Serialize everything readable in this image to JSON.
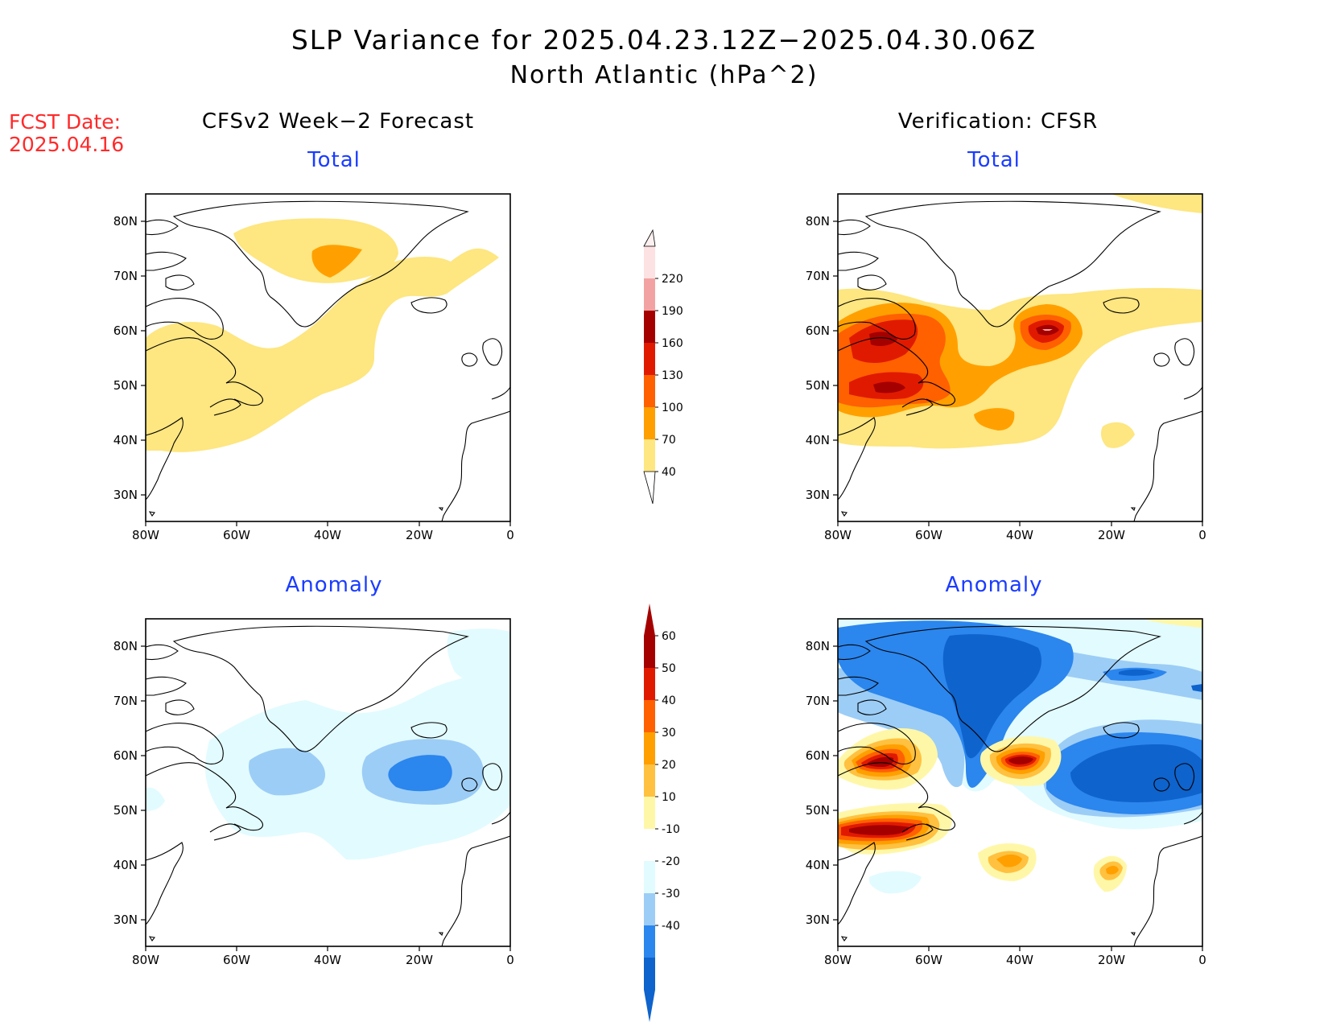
{
  "title": "SLP Variance for 2025.04.23.12Z−2025.04.30.06Z",
  "subtitle": "North Atlantic (hPa^2)",
  "fcst_date": {
    "label": "FCST Date:",
    "value": "2025.04.16"
  },
  "columns": {
    "left": "CFSv2 Week−2 Forecast",
    "right": "Verification: CFSR"
  },
  "panel_titles": {
    "top_left": "Total",
    "top_right": "Total",
    "bottom_left": "Anomaly",
    "bottom_right": "Anomaly"
  },
  "axes": {
    "lat_labels": [
      "30N",
      "40N",
      "50N",
      "60N",
      "70N",
      "80N"
    ],
    "lon_labels": [
      "80W",
      "60W",
      "40W",
      "20W",
      "0"
    ]
  },
  "colorbars": {
    "total": {
      "levels": [
        "40",
        "70",
        "100",
        "130",
        "160",
        "190",
        "220"
      ],
      "colors": [
        "#fee680",
        "#ff9f00",
        "#ff6000",
        "#e01a00",
        "#a50000",
        "#f2a2a2",
        "#fce2e2"
      ]
    },
    "anomaly": {
      "levels": [
        "-40",
        "-30",
        "-20",
        "-10",
        "10",
        "20",
        "30",
        "40",
        "50",
        "60"
      ],
      "colors": [
        "#0e63cc",
        "#2b86ee",
        "#9ccdf6",
        "#e2fbff",
        "#ffffff",
        "#fff7a8",
        "#ffc13f",
        "#ff9f00",
        "#ff6000",
        "#e01a00",
        "#a50000"
      ]
    }
  }
}
